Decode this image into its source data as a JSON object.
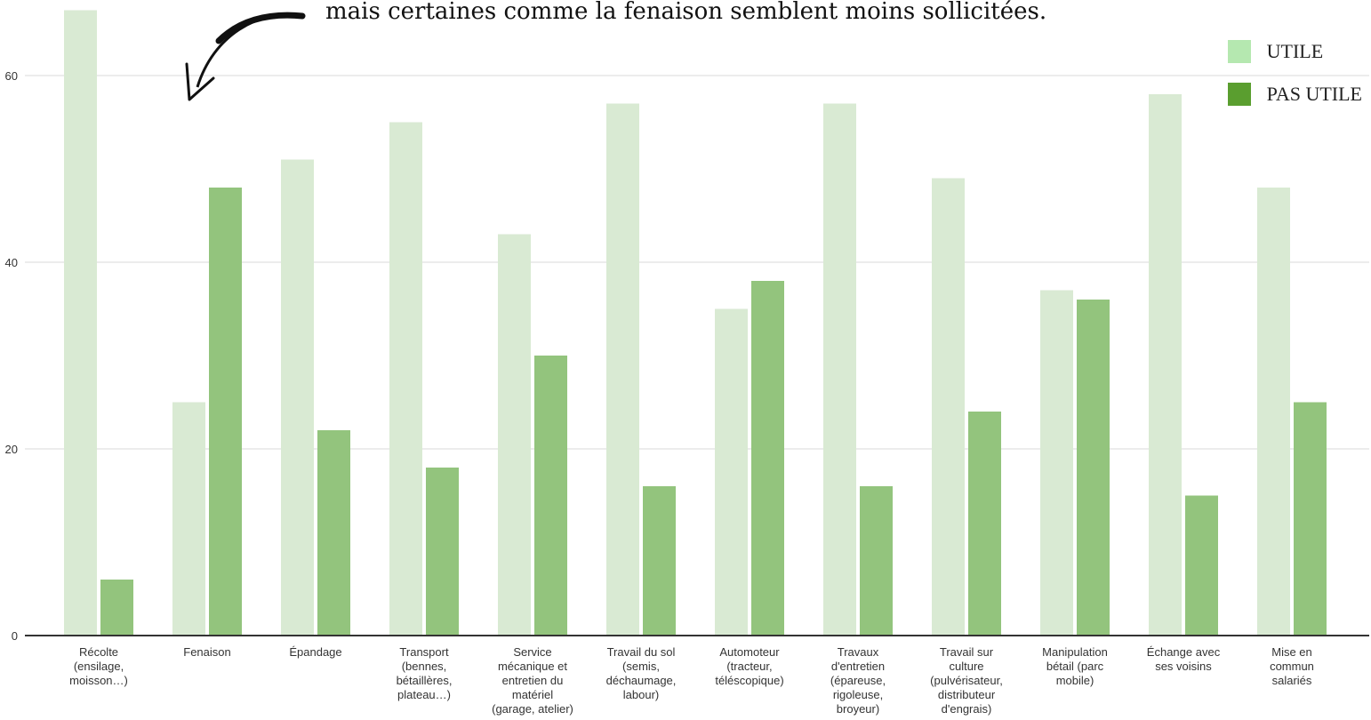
{
  "annotation": "mais certaines comme la fenaison semblent moins sollicitées.",
  "colors": {
    "legend_utile": "#b5e8b0",
    "legend_pas_utile": "#5a9e2f",
    "bar_utile": "#d9ead3",
    "bar_pas_utile": "#93c47d",
    "grid": "#d9d9d9",
    "axis": "#333333"
  },
  "chart_data": {
    "type": "bar",
    "categories": [
      "Récolte (ensilage, moisson…)",
      "Fenaison",
      "Épandage",
      "Transport (bennes, bétaillères, plateau…)",
      "Service mécanique et entretien du matériel (garage, atelier)",
      "Travail du sol (semis, déchaumage, labour)",
      "Automoteur (tracteur, téléscopique)",
      "Travaux d'entretien (épareuse, rigoleuse, broyeur)",
      "Travail sur culture (pulvérisateur, distributeur d'engrais)",
      "Manipulation bétail (parc mobile)",
      "Échange avec ses voisins",
      "Mise en commun salariés"
    ],
    "category_lines": [
      [
        "Récolte",
        "(ensilage,",
        "moisson…)"
      ],
      [
        "Fenaison"
      ],
      [
        "Épandage"
      ],
      [
        "Transport",
        "(bennes,",
        "bétaillères,",
        "plateau…)"
      ],
      [
        "Service",
        "mécanique et",
        "entretien du",
        "matériel",
        "(garage, atelier)"
      ],
      [
        "Travail du sol",
        "(semis,",
        "déchaumage,",
        "labour)"
      ],
      [
        "Automoteur",
        "(tracteur,",
        "téléscopique)"
      ],
      [
        "Travaux",
        "d'entretien",
        "(épareuse,",
        "rigoleuse,",
        "broyeur)"
      ],
      [
        "Travail sur",
        "culture",
        "(pulvérisateur,",
        "distributeur",
        "d'engrais)"
      ],
      [
        "Manipulation",
        "bétail (parc",
        "mobile)"
      ],
      [
        "Échange avec",
        "ses voisins"
      ],
      [
        "Mise en",
        "commun",
        "salariés"
      ]
    ],
    "series": [
      {
        "name": "UTILE",
        "values": [
          67,
          25,
          51,
          55,
          43,
          57,
          35,
          57,
          49,
          37,
          58,
          48
        ]
      },
      {
        "name": "PAS UTILE",
        "values": [
          6,
          48,
          22,
          18,
          30,
          16,
          38,
          16,
          24,
          36,
          15,
          25
        ]
      }
    ],
    "yticks": [
      0,
      20,
      40,
      60
    ],
    "ylim": [
      0,
      68
    ],
    "grid": true,
    "legend_position": "top-right"
  }
}
